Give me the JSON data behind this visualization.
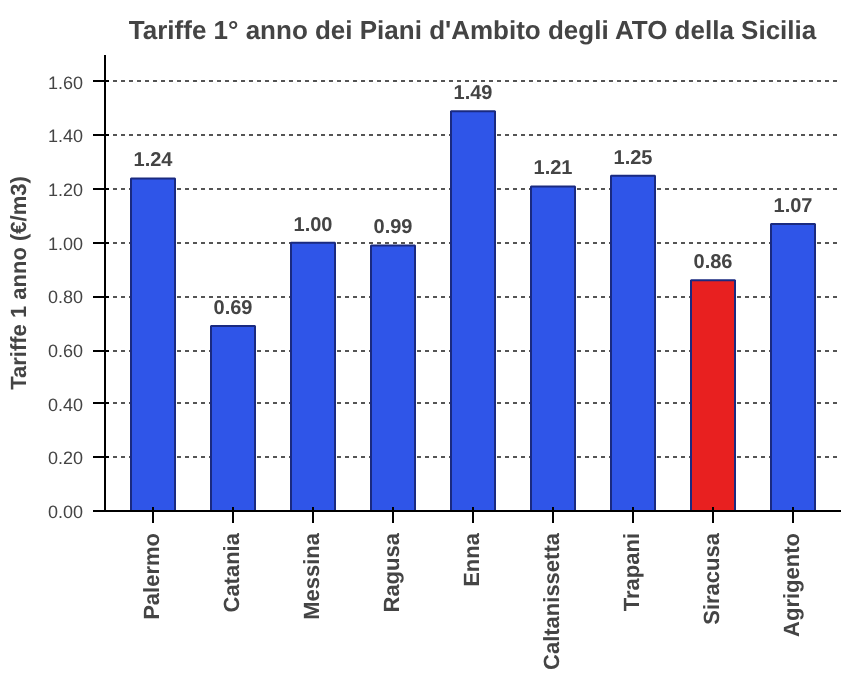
{
  "chart_data": {
    "type": "bar",
    "title": "Tariffe 1° anno dei Piani d'Ambito degli ATO della Sicilia",
    "ylabel": "Tariffe 1 anno (€/m3)",
    "categories": [
      "Palermo",
      "Catania",
      "Messina",
      "Ragusa",
      "Enna",
      "Caltanissetta",
      "Trapani",
      "Siracusa",
      "Agrigento"
    ],
    "values": [
      1.24,
      0.69,
      1.0,
      0.99,
      1.49,
      1.21,
      1.25,
      0.86,
      1.07
    ],
    "colors": [
      "#2f55e8",
      "#2f55e8",
      "#2f55e8",
      "#2f55e8",
      "#2f55e8",
      "#2f55e8",
      "#2f55e8",
      "#e82020",
      "#2f55e8"
    ],
    "ylim": [
      0,
      1.7
    ],
    "yticks": [
      {
        "value": 0,
        "label": "0.00"
      },
      {
        "value": 0.2,
        "label": "0.20"
      },
      {
        "value": 0.4,
        "label": "0.40"
      },
      {
        "value": 0.6,
        "label": "0.60"
      },
      {
        "value": 0.8,
        "label": "0.80"
      },
      {
        "value": 1.0,
        "label": "1.00"
      },
      {
        "value": 1.2,
        "label": "1.20"
      },
      {
        "value": 1.4,
        "label": "1.40"
      },
      {
        "value": 1.6,
        "label": "1.60"
      }
    ],
    "value_labels": [
      "1.24",
      "0.69",
      "1.00",
      "0.99",
      "1.49",
      "1.21",
      "1.25",
      "0.86",
      "1.07"
    ],
    "grid": "y"
  }
}
